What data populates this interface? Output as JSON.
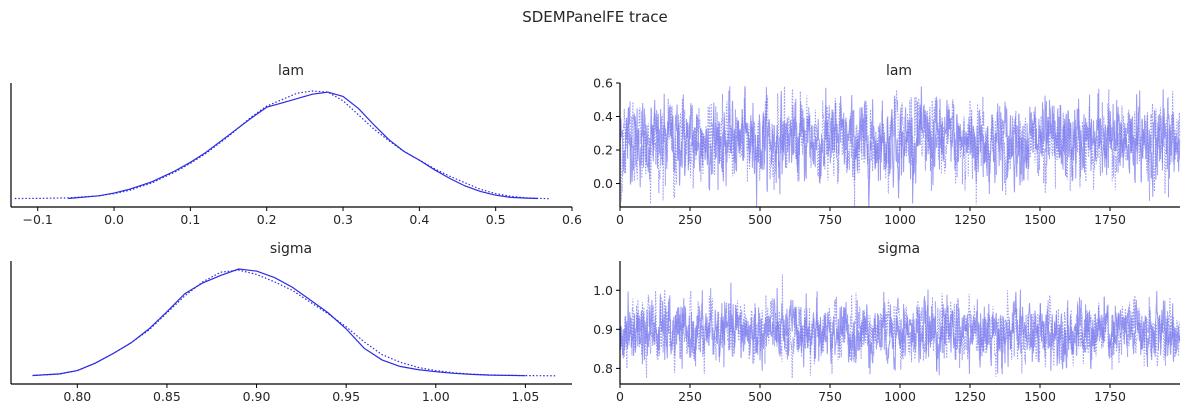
{
  "figure": {
    "title": "SDEMPanelFE trace"
  },
  "colors": {
    "chain": "#2b2be0",
    "trace": "#7b7bef",
    "axis": "#000000",
    "text": "#262626"
  },
  "chart_data": [
    {
      "type": "line",
      "subtype": "kde",
      "title": "lam",
      "xlim": [
        -0.135,
        0.6
      ],
      "xticks": [
        -0.1,
        0.0,
        0.1,
        0.2,
        0.3,
        0.4,
        0.5,
        0.6
      ],
      "xticklabels": [
        "−0.1",
        "0.0",
        "0.1",
        "0.2",
        "0.3",
        "0.4",
        "0.5",
        "0.6"
      ],
      "series": [
        {
          "style": "solid",
          "x": [
            -0.06,
            -0.02,
            0.0,
            0.02,
            0.05,
            0.08,
            0.1,
            0.12,
            0.15,
            0.18,
            0.2,
            0.22,
            0.24,
            0.26,
            0.28,
            0.3,
            0.32,
            0.34,
            0.36,
            0.38,
            0.4,
            0.42,
            0.44,
            0.46,
            0.48,
            0.5,
            0.52,
            0.54,
            0.555
          ],
          "y": [
            0.005,
            0.03,
            0.055,
            0.09,
            0.16,
            0.26,
            0.34,
            0.43,
            0.59,
            0.75,
            0.85,
            0.89,
            0.93,
            0.97,
            0.99,
            0.95,
            0.84,
            0.69,
            0.55,
            0.44,
            0.36,
            0.27,
            0.19,
            0.12,
            0.07,
            0.035,
            0.015,
            0.008,
            0.005
          ]
        },
        {
          "style": "dotted",
          "x": [
            -0.13,
            -0.1,
            -0.06,
            -0.02,
            0.0,
            0.02,
            0.05,
            0.08,
            0.1,
            0.12,
            0.15,
            0.18,
            0.2,
            0.22,
            0.24,
            0.26,
            0.28,
            0.3,
            0.32,
            0.34,
            0.36,
            0.38,
            0.4,
            0.42,
            0.44,
            0.46,
            0.48,
            0.5,
            0.52,
            0.54,
            0.57
          ],
          "y": [
            0.005,
            0.006,
            0.01,
            0.03,
            0.05,
            0.08,
            0.15,
            0.25,
            0.33,
            0.42,
            0.58,
            0.76,
            0.86,
            0.92,
            0.98,
            1.0,
            0.99,
            0.91,
            0.78,
            0.65,
            0.54,
            0.44,
            0.36,
            0.28,
            0.21,
            0.15,
            0.09,
            0.05,
            0.025,
            0.01,
            0.003
          ]
        }
      ]
    },
    {
      "type": "line",
      "subtype": "trace",
      "title": "lam",
      "xlim": [
        0,
        2000
      ],
      "ylim": [
        -0.14,
        0.6
      ],
      "xticks": [
        0,
        250,
        500,
        750,
        1000,
        1250,
        1500,
        1750
      ],
      "yticks": [
        0.0,
        0.2,
        0.4,
        0.6
      ],
      "yticklabels": [
        "0.0",
        "0.2",
        "0.4",
        "0.6"
      ],
      "draws": 2000,
      "chains": 2,
      "center": 0.255,
      "spread": 0.12,
      "observed_min": -0.14,
      "observed_max": 0.58
    },
    {
      "type": "line",
      "subtype": "kde",
      "title": "sigma",
      "xlim": [
        0.763,
        1.076
      ],
      "xticks": [
        0.8,
        0.85,
        0.9,
        0.95,
        1.0,
        1.05
      ],
      "xticklabels": [
        "0.80",
        "0.85",
        "0.90",
        "0.95",
        "1.00",
        "1.05"
      ],
      "series": [
        {
          "style": "solid",
          "x": [
            0.775,
            0.79,
            0.8,
            0.81,
            0.82,
            0.83,
            0.84,
            0.85,
            0.86,
            0.87,
            0.88,
            0.89,
            0.9,
            0.91,
            0.92,
            0.93,
            0.94,
            0.95,
            0.96,
            0.97,
            0.98,
            0.99,
            1.0,
            1.01,
            1.02,
            1.03,
            1.05
          ],
          "y": [
            0.005,
            0.02,
            0.05,
            0.12,
            0.21,
            0.31,
            0.44,
            0.6,
            0.77,
            0.87,
            0.94,
            1.0,
            0.98,
            0.92,
            0.83,
            0.71,
            0.59,
            0.44,
            0.26,
            0.15,
            0.09,
            0.06,
            0.04,
            0.025,
            0.015,
            0.008,
            0.003
          ]
        },
        {
          "style": "dotted",
          "x": [
            0.775,
            0.79,
            0.8,
            0.81,
            0.82,
            0.83,
            0.84,
            0.85,
            0.86,
            0.87,
            0.88,
            0.89,
            0.9,
            0.91,
            0.92,
            0.93,
            0.94,
            0.95,
            0.96,
            0.97,
            0.98,
            0.99,
            1.0,
            1.01,
            1.02,
            1.03,
            1.05,
            1.067
          ],
          "y": [
            0.005,
            0.018,
            0.05,
            0.12,
            0.21,
            0.31,
            0.43,
            0.59,
            0.75,
            0.88,
            0.97,
            0.99,
            0.95,
            0.88,
            0.8,
            0.69,
            0.58,
            0.46,
            0.32,
            0.2,
            0.13,
            0.08,
            0.05,
            0.03,
            0.018,
            0.01,
            0.004,
            0.002
          ]
        }
      ]
    },
    {
      "type": "line",
      "subtype": "trace",
      "title": "sigma",
      "xlim": [
        0,
        2000
      ],
      "ylim": [
        0.76,
        1.075
      ],
      "xticks": [
        0,
        250,
        500,
        750,
        1000,
        1250,
        1500,
        1750
      ],
      "yticks": [
        0.8,
        0.9,
        1.0
      ],
      "yticklabels": [
        "0.8",
        "0.9",
        "1.0"
      ],
      "draws": 2000,
      "chains": 2,
      "center": 0.893,
      "spread": 0.04,
      "observed_min": 0.775,
      "observed_max": 1.065
    }
  ]
}
